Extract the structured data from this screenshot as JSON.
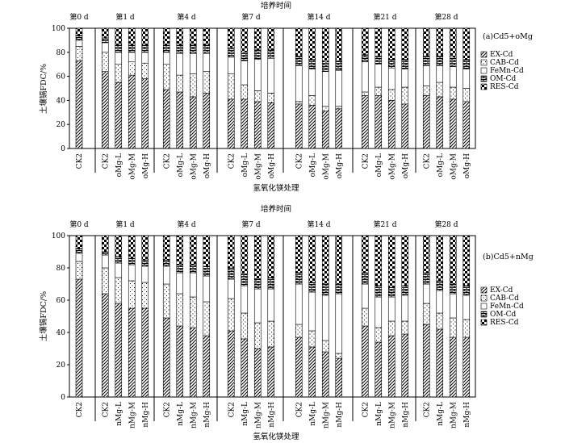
{
  "colors": {
    "ink": "#000000",
    "background": "#ffffff"
  },
  "fractions": [
    {
      "key": "EX",
      "name": "EX-Cd",
      "pattern": "diagonal-hatch"
    },
    {
      "key": "CAB",
      "name": "CAB-Cd",
      "pattern": "dots"
    },
    {
      "key": "FeMn",
      "name": "FeMn-Cd",
      "pattern": "blank"
    },
    {
      "key": "OM",
      "name": "OM-Cd",
      "pattern": "horizontal-bricks"
    },
    {
      "key": "RES",
      "name": "RES-Cd",
      "pattern": "checker"
    }
  ],
  "chart_data": [
    {
      "type": "stacked-bar",
      "panel_label": "(a)Cd5+oMg",
      "top_title": "培养时间",
      "xlabel": "氢氧化镁处理",
      "ylabel": "土壤镉FDC/%",
      "ylim": [
        0,
        100
      ],
      "yticks": [
        0,
        20,
        40,
        60,
        80,
        100
      ],
      "legend_position": "right",
      "groups": [
        {
          "label": "第0 d",
          "bars": [
            {
              "name": "CK2",
              "values": [
                73,
                12,
                5,
                4,
                6
              ]
            }
          ]
        },
        {
          "label": "第1 d",
          "bars": [
            {
              "name": "CK2",
              "values": [
                64,
                16,
                8,
                4,
                8
              ]
            },
            {
              "name": "oMg-L",
              "values": [
                55,
                15,
                10,
                6,
                14
              ]
            },
            {
              "name": "oMg-M",
              "values": [
                61,
                11,
                8,
                6,
                14
              ]
            },
            {
              "name": "oMg-H",
              "values": [
                58,
                13,
                9,
                6,
                14
              ]
            }
          ]
        },
        {
          "label": "第4 d",
          "bars": [
            {
              "name": "CK2",
              "values": [
                49,
                21,
                10,
                6,
                14
              ]
            },
            {
              "name": "oMg-L",
              "values": [
                47,
                14,
                18,
                7,
                14
              ]
            },
            {
              "name": "oMg-M",
              "values": [
                43,
                19,
                17,
                7,
                14
              ]
            },
            {
              "name": "oMg-H",
              "values": [
                46,
                18,
                15,
                7,
                14
              ]
            }
          ]
        },
        {
          "label": "第7 d",
          "bars": [
            {
              "name": "CK2",
              "values": [
                41,
                21,
                14,
                8,
                16
              ]
            },
            {
              "name": "oMg-L",
              "values": [
                41,
                12,
                20,
                7,
                20
              ]
            },
            {
              "name": "oMg-M",
              "values": [
                39,
                9,
                26,
                8,
                18
              ]
            },
            {
              "name": "oMg-H",
              "values": [
                38,
                8,
                29,
                7,
                18
              ]
            }
          ]
        },
        {
          "label": "第14 d",
          "bars": [
            {
              "name": "CK2",
              "values": [
                37,
                2,
                30,
                8,
                23
              ]
            },
            {
              "name": "oMg-L",
              "values": [
                36,
                8,
                22,
                8,
                26
              ]
            },
            {
              "name": "oMg-M",
              "values": [
                31,
                4,
                29,
                8,
                28
              ]
            },
            {
              "name": "oMg-H",
              "values": [
                33,
                2,
                30,
                8,
                27
              ]
            }
          ]
        },
        {
          "label": "第21 d",
          "bars": [
            {
              "name": "CK2",
              "values": [
                44,
                3,
                25,
                6,
                22
              ]
            },
            {
              "name": "oMg-L",
              "values": [
                44,
                7,
                19,
                7,
                23
              ]
            },
            {
              "name": "oMg-M",
              "values": [
                40,
                9,
                18,
                7,
                26
              ]
            },
            {
              "name": "oMg-H",
              "values": [
                37,
                14,
                15,
                8,
                26
              ]
            }
          ]
        },
        {
          "label": "第28 d",
          "bars": [
            {
              "name": "CK2",
              "values": [
                44,
                8,
                17,
                8,
                23
              ]
            },
            {
              "name": "oMg-L",
              "values": [
                43,
                12,
                14,
                8,
                23
              ]
            },
            {
              "name": "oMg-M",
              "values": [
                41,
                10,
                17,
                8,
                24
              ]
            },
            {
              "name": "oMg-H",
              "values": [
                39,
                11,
                16,
                8,
                26
              ]
            }
          ]
        }
      ]
    },
    {
      "type": "stacked-bar",
      "panel_label": "(b)Cd5+nMg",
      "top_title": "培养时间",
      "xlabel": "氢氧化镁处理",
      "ylabel": "土壤镉FDC/%",
      "ylim": [
        0,
        100
      ],
      "yticks": [
        0,
        20,
        40,
        60,
        80,
        100
      ],
      "legend_position": "right",
      "groups": [
        {
          "label": "第0 d",
          "bars": [
            {
              "name": "CK2",
              "values": [
                73,
                11,
                5,
                3,
                8
              ]
            }
          ]
        },
        {
          "label": "第1 d",
          "bars": [
            {
              "name": "CK2",
              "values": [
                64,
                16,
                8,
                2,
                10
              ]
            },
            {
              "name": "nMg-L",
              "values": [
                58,
                16,
                9,
                4,
                13
              ]
            },
            {
              "name": "nMg-M",
              "values": [
                55,
                17,
                10,
                4,
                14
              ]
            },
            {
              "name": "nMg-H",
              "values": [
                55,
                16,
                10,
                4,
                15
              ]
            }
          ]
        },
        {
          "label": "第4 d",
          "bars": [
            {
              "name": "CK2",
              "values": [
                49,
                21,
                11,
                4,
                15
              ]
            },
            {
              "name": "nMg-L",
              "values": [
                44,
                20,
                13,
                5,
                18
              ]
            },
            {
              "name": "nMg-M",
              "values": [
                43,
                19,
                15,
                5,
                18
              ]
            },
            {
              "name": "nMg-H",
              "values": [
                38,
                21,
                16,
                6,
                19
              ]
            }
          ]
        },
        {
          "label": "第7 d",
          "bars": [
            {
              "name": "CK2",
              "values": [
                41,
                20,
                12,
                7,
                20
              ]
            },
            {
              "name": "nMg-L",
              "values": [
                36,
                16,
                17,
                7,
                24
              ]
            },
            {
              "name": "nMg-M",
              "values": [
                30,
                16,
                21,
                6,
                27
              ]
            },
            {
              "name": "nMg-H",
              "values": [
                31,
                16,
                20,
                7,
                26
              ]
            }
          ]
        },
        {
          "label": "第14 d",
          "bars": [
            {
              "name": "CK2",
              "values": [
                37,
                8,
                25,
                7,
                23
              ]
            },
            {
              "name": "nMg-L",
              "values": [
                31,
                10,
                24,
                6,
                29
              ]
            },
            {
              "name": "nMg-M",
              "values": [
                28,
                7,
                28,
                7,
                30
              ]
            },
            {
              "name": "nMg-H",
              "values": [
                24,
                3,
                37,
                6,
                30
              ]
            }
          ]
        },
        {
          "label": "第21 d",
          "bars": [
            {
              "name": "CK2",
              "values": [
                44,
                11,
                15,
                7,
                23
              ]
            },
            {
              "name": "nMg-L",
              "values": [
                34,
                9,
                19,
                7,
                31
              ]
            },
            {
              "name": "nMg-M",
              "values": [
                38,
                9,
                15,
                6,
                32
              ]
            },
            {
              "name": "nMg-H",
              "values": [
                39,
                8,
                16,
                6,
                31
              ]
            }
          ]
        },
        {
          "label": "第28 d",
          "bars": [
            {
              "name": "CK2",
              "values": [
                45,
                13,
                12,
                7,
                23
              ]
            },
            {
              "name": "nMg-L",
              "values": [
                42,
                10,
                14,
                6,
                28
              ]
            },
            {
              "name": "nMg-M",
              "values": [
                37,
                12,
                15,
                6,
                30
              ]
            },
            {
              "name": "nMg-H",
              "values": [
                37,
                11,
                15,
                6,
                31
              ]
            }
          ]
        }
      ]
    }
  ]
}
